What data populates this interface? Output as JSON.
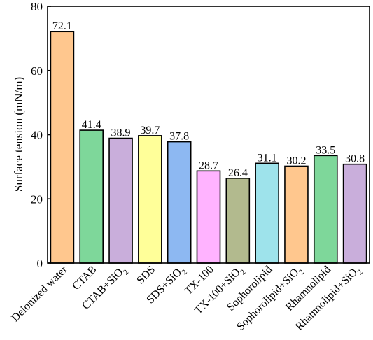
{
  "chart_data": {
    "type": "bar",
    "title": "",
    "xlabel": "",
    "ylabel": "Surface tension (mN/m)",
    "ylim": [
      0,
      80
    ],
    "yticks": [
      0,
      20,
      40,
      60,
      80
    ],
    "grid": false,
    "categories": [
      {
        "base": "Deionized water",
        "sub": ""
      },
      {
        "base": "CTAB",
        "sub": ""
      },
      {
        "base": "CTAB+SiO",
        "sub": "2"
      },
      {
        "base": "SDS",
        "sub": ""
      },
      {
        "base": "SDS+SiO",
        "sub": "2"
      },
      {
        "base": "TX-100",
        "sub": ""
      },
      {
        "base": "TX-100+SiO",
        "sub": "2"
      },
      {
        "base": "Sophorolipid",
        "sub": ""
      },
      {
        "base": "Sophorolipid+SiO",
        "sub": "2"
      },
      {
        "base": "Rhamnolipid",
        "sub": ""
      },
      {
        "base": "Rhamnolipid+SiO",
        "sub": "2"
      }
    ],
    "values": [
      72.1,
      41.4,
      38.9,
      39.7,
      37.8,
      28.7,
      26.4,
      31.1,
      30.2,
      33.5,
      30.8
    ],
    "value_labels": [
      "72.1",
      "41.4",
      "38.9",
      "39.7",
      "37.8",
      "28.7",
      "26.4",
      "31.1",
      "30.2",
      "33.5",
      "30.8"
    ],
    "colors": [
      "#FFC78E",
      "#7ED79A",
      "#C9AEDB",
      "#FFFF99",
      "#8DB8F2",
      "#FFB3FF",
      "#B2BA8E",
      "#9EE3EB",
      "#FFC78E",
      "#7ED79A",
      "#C9AEDB"
    ]
  }
}
